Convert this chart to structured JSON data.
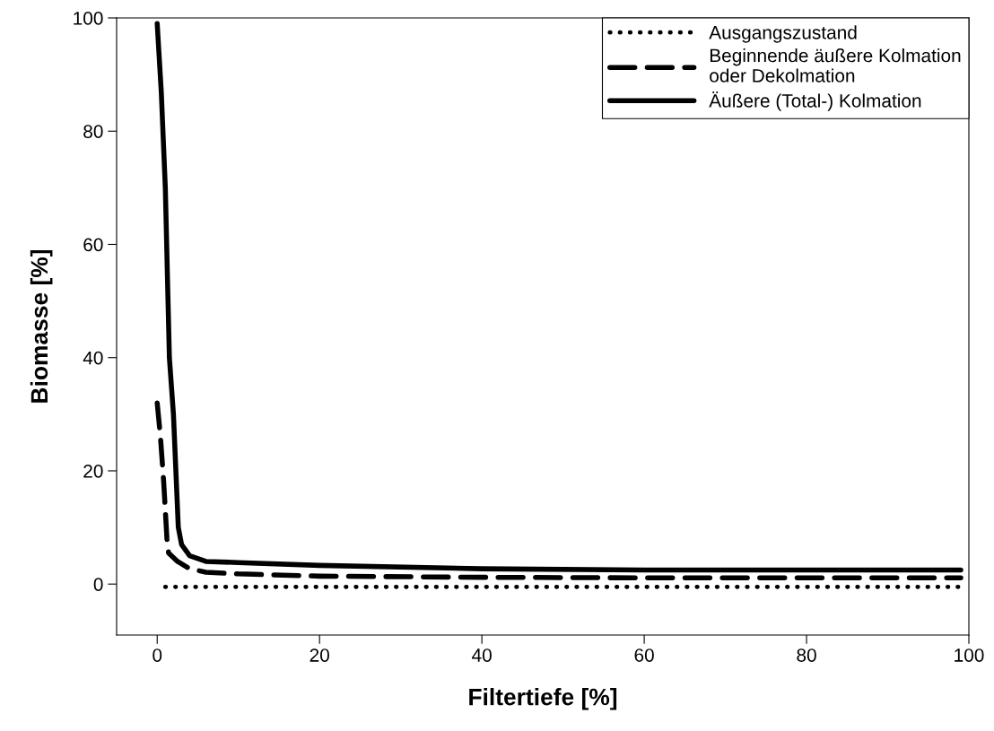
{
  "chart_data": {
    "type": "line",
    "xlabel": "Filtertiefe [%]",
    "ylabel": "Biomasse [%]",
    "xlim": [
      -5,
      100
    ],
    "ylim": [
      -9,
      100
    ],
    "xticks": [
      0,
      20,
      40,
      60,
      80,
      100
    ],
    "yticks": [
      0,
      20,
      40,
      60,
      80,
      100
    ],
    "grid": false,
    "legend": "top right",
    "marker": "none",
    "series": [
      {
        "name": "Ausgangszustand",
        "color": "#000000",
        "line_style": "dotted",
        "x": [
          1,
          20,
          40,
          60,
          80,
          99
        ],
        "values": [
          -0.5,
          -0.5,
          -0.5,
          -0.5,
          -0.5,
          -0.5
        ]
      },
      {
        "name": "Beginnende äußere Kolmation\noder Dekolmation",
        "color": "#000000",
        "line_style": "dashed",
        "x": [
          0,
          0.4,
          0.8,
          1.2,
          1.4,
          2.5,
          4,
          6,
          10,
          20,
          40,
          60,
          99
        ],
        "values": [
          32,
          26,
          18,
          8,
          5.5,
          4,
          2.7,
          2.1,
          1.8,
          1.4,
          1.2,
          1.1,
          1.1
        ]
      },
      {
        "name": "Äußere (Total-) Kolmation",
        "color": "#000000",
        "line_style": "solid",
        "x": [
          0,
          0.5,
          1,
          1.5,
          2,
          2.3,
          2.6,
          3,
          4,
          6,
          10,
          20,
          40,
          60,
          99
        ],
        "values": [
          99,
          87,
          70,
          40,
          30,
          20,
          10,
          7,
          5,
          4,
          3.8,
          3.3,
          2.7,
          2.5,
          2.5
        ]
      }
    ]
  }
}
